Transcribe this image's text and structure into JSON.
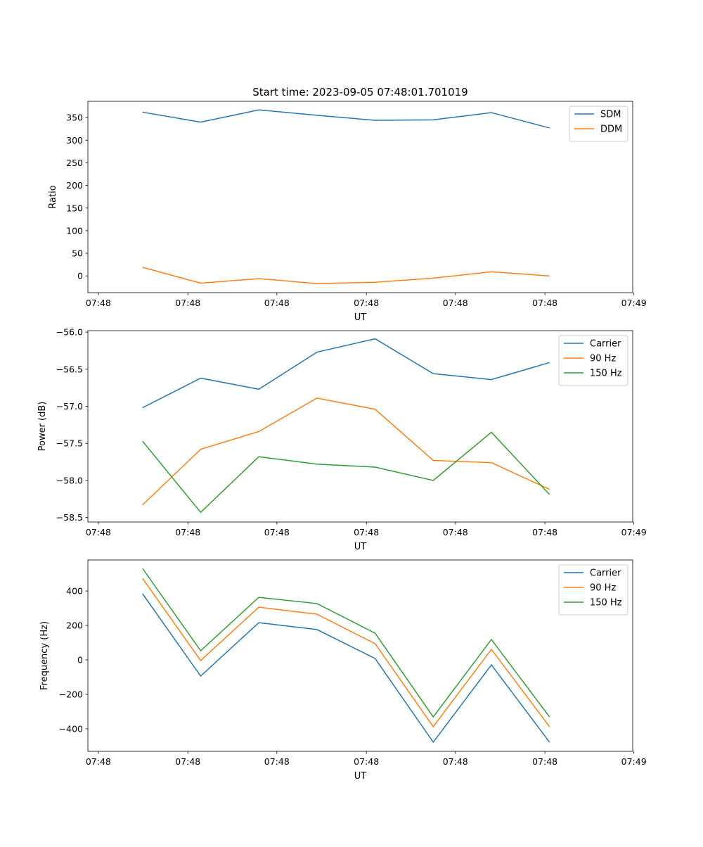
{
  "chart_data": [
    {
      "type": "line",
      "title": "Start time: 2023-09-05 07:48:01.701019",
      "xlabel": "UT",
      "ylabel": "Ratio",
      "x": [
        0,
        1,
        2,
        3,
        4,
        5,
        6,
        7
      ],
      "xlim": [
        -0.94,
        8.43
      ],
      "xticks": [
        -0.76,
        0.78,
        2.31,
        3.85,
        5.38,
        6.92,
        8.45
      ],
      "xtick_labels": [
        "07:48",
        "07:48",
        "07:48",
        "07:48",
        "07:48",
        "07:48",
        "07:49"
      ],
      "ylim": [
        -37,
        386
      ],
      "yticks": [
        0,
        50,
        100,
        150,
        200,
        250,
        300,
        350
      ],
      "ytick_labels": [
        "0",
        "50",
        "100",
        "150",
        "200",
        "250",
        "300",
        "350"
      ],
      "legend": "top-right",
      "series": [
        {
          "name": "SDM",
          "color": "#1f77b4",
          "values": [
            362,
            340,
            367,
            355,
            344,
            345,
            361,
            327
          ]
        },
        {
          "name": "DDM",
          "color": "#ff7f0e",
          "values": [
            19,
            -16,
            -6,
            -17,
            -14,
            -5,
            9,
            0
          ]
        }
      ]
    },
    {
      "type": "line",
      "title": "",
      "xlabel": "UT",
      "ylabel": "Power (dB)",
      "x": [
        0,
        1,
        2,
        3,
        4,
        5,
        6,
        7
      ],
      "xlim": [
        -0.94,
        8.43
      ],
      "xticks": [
        -0.76,
        0.78,
        2.31,
        3.85,
        5.38,
        6.92,
        8.45
      ],
      "xtick_labels": [
        "07:48",
        "07:48",
        "07:48",
        "07:48",
        "07:48",
        "07:48",
        "07:49"
      ],
      "ylim": [
        -58.56,
        -55.98
      ],
      "yticks": [
        -58.5,
        -58.0,
        -57.5,
        -57.0,
        -56.5,
        -56.0
      ],
      "ytick_labels": [
        "−58.5",
        "−58.0",
        "−57.5",
        "−57.0",
        "−56.5",
        "−56.0"
      ],
      "legend": "top-right",
      "series": [
        {
          "name": "Carrier",
          "color": "#1f77b4",
          "values": [
            -57.02,
            -56.62,
            -56.77,
            -56.27,
            -56.09,
            -56.56,
            -56.64,
            -56.41
          ]
        },
        {
          "name": "90 Hz",
          "color": "#ff7f0e",
          "values": [
            -58.33,
            -57.58,
            -57.34,
            -56.89,
            -57.04,
            -57.73,
            -57.76,
            -58.12
          ]
        },
        {
          "name": "150 Hz",
          "color": "#2ca02c",
          "values": [
            -57.47,
            -58.43,
            -57.68,
            -57.78,
            -57.82,
            -58.0,
            -57.35,
            -58.19
          ]
        }
      ]
    },
    {
      "type": "line",
      "title": "",
      "xlabel": "UT",
      "ylabel": "Frequency (Hz)",
      "x": [
        0,
        1,
        2,
        3,
        4,
        5,
        6,
        7
      ],
      "xlim": [
        -0.94,
        8.43
      ],
      "xticks": [
        -0.76,
        0.78,
        2.31,
        3.85,
        5.38,
        6.92,
        8.45
      ],
      "xtick_labels": [
        "07:48",
        "07:48",
        "07:48",
        "07:48",
        "07:48",
        "07:48",
        "07:49"
      ],
      "ylim": [
        -531,
        580
      ],
      "yticks": [
        -400,
        -200,
        0,
        200,
        400
      ],
      "ytick_labels": [
        "−400",
        "−200",
        "0",
        "200",
        "400"
      ],
      "legend": "top-right",
      "series": [
        {
          "name": "Carrier",
          "color": "#1f77b4",
          "values": [
            384,
            -94,
            216,
            176,
            8,
            -478,
            -29,
            -478
          ]
        },
        {
          "name": "90 Hz",
          "color": "#ff7f0e",
          "values": [
            473,
            -4,
            306,
            265,
            94,
            -388,
            61,
            -388
          ]
        },
        {
          "name": "150 Hz",
          "color": "#2ca02c",
          "values": [
            531,
            53,
            363,
            327,
            155,
            -331,
            118,
            -331
          ]
        }
      ]
    }
  ]
}
